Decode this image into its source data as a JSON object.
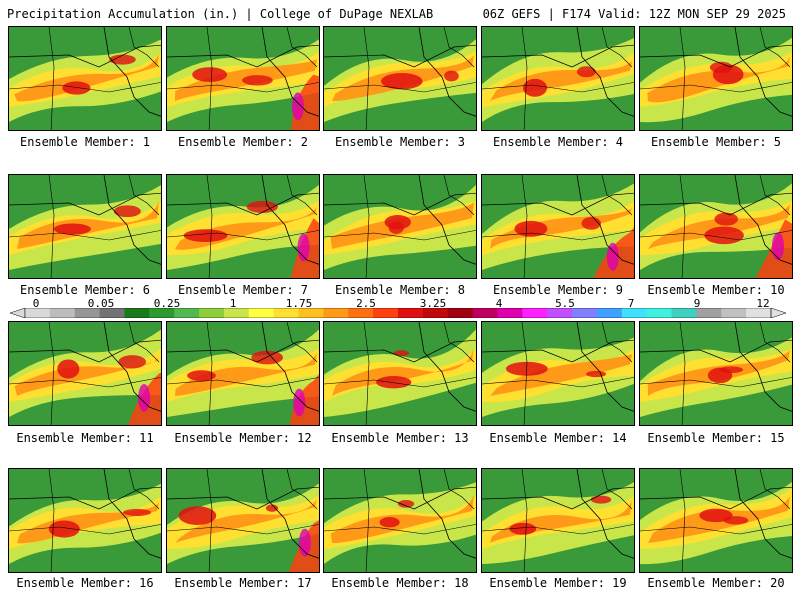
{
  "header": {
    "left_title": "Precipitation Accumulation (in.) | College of DuPage NEXLAB",
    "right_title": "06Z GEFS | F174 Valid: 12Z MON SEP 29 2025"
  },
  "members": [
    {
      "label": "Ensemble Member: 1"
    },
    {
      "label": "Ensemble Member: 2"
    },
    {
      "label": "Ensemble Member: 3"
    },
    {
      "label": "Ensemble Member: 4"
    },
    {
      "label": "Ensemble Member: 5"
    },
    {
      "label": "Ensemble Member: 6"
    },
    {
      "label": "Ensemble Member: 7"
    },
    {
      "label": "Ensemble Member: 8"
    },
    {
      "label": "Ensemble Member: 9"
    },
    {
      "label": "Ensemble Member: 10"
    },
    {
      "label": "Ensemble Member: 11"
    },
    {
      "label": "Ensemble Member: 12"
    },
    {
      "label": "Ensemble Member: 13"
    },
    {
      "label": "Ensemble Member: 14"
    },
    {
      "label": "Ensemble Member: 15"
    },
    {
      "label": "Ensemble Member: 16"
    },
    {
      "label": "Ensemble Member: 17"
    },
    {
      "label": "Ensemble Member: 18"
    },
    {
      "label": "Ensemble Member: 19"
    },
    {
      "label": "Ensemble Member: 20"
    }
  ],
  "colorbar": {
    "tick_labels": [
      "0",
      "0.05",
      "0.25",
      "1",
      "1.75",
      "2.5",
      "3.25",
      "4",
      "5.5",
      "7",
      "9",
      "12"
    ],
    "colors": [
      "#d9d9d9",
      "#bdbdbd",
      "#969696",
      "#737373",
      "#1a7a1a",
      "#2e9a2e",
      "#52b852",
      "#8ccf3a",
      "#c8e64a",
      "#ffff40",
      "#ffe030",
      "#ffc020",
      "#ff9a18",
      "#ff7010",
      "#ff4010",
      "#e01010",
      "#c00808",
      "#a00010",
      "#c00060",
      "#e000b0",
      "#ff20ff",
      "#c050ff",
      "#8080ff",
      "#40a0ff",
      "#40e0ff",
      "#40f0e0",
      "#40d0c0",
      "#a0a0a0",
      "#c0c0c0",
      "#e0e0e0"
    ]
  }
}
